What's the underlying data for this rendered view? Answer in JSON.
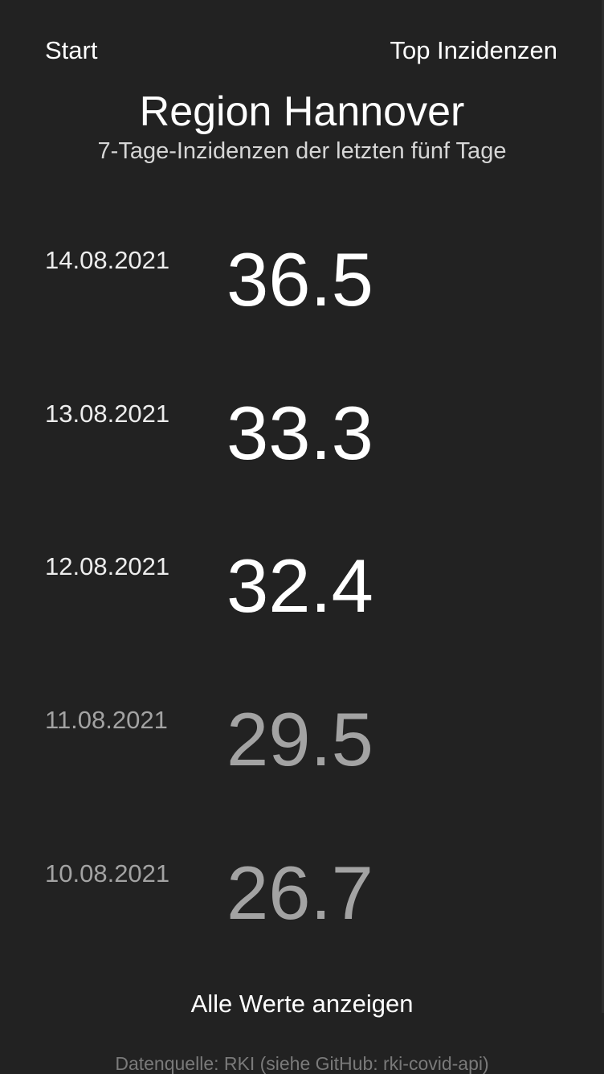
{
  "nav": {
    "start_label": "Start",
    "top_label": "Top Inzidenzen"
  },
  "header": {
    "title": "Region Hannover",
    "subtitle": "7-Tage-Inzidenzen der letzten fünf Tage"
  },
  "incidences": [
    {
      "date": "14.08.2021",
      "value": "36.5",
      "emphasis": "bright"
    },
    {
      "date": "13.08.2021",
      "value": "33.3",
      "emphasis": "bright"
    },
    {
      "date": "12.08.2021",
      "value": "32.4",
      "emphasis": "bright"
    },
    {
      "date": "11.08.2021",
      "value": "29.5",
      "emphasis": "dim"
    },
    {
      "date": "10.08.2021",
      "value": "26.7",
      "emphasis": "dim"
    }
  ],
  "actions": {
    "show_all_label": "Alle Werte anzeigen"
  },
  "footer": {
    "source_text": "Datenquelle: RKI (siehe GitHub: rki-covid-api)"
  },
  "colors": {
    "background": "#222222",
    "text_bright": "#ffffff",
    "text_dim": "#a3a3a3",
    "footer_text": "#7a7a7a"
  }
}
